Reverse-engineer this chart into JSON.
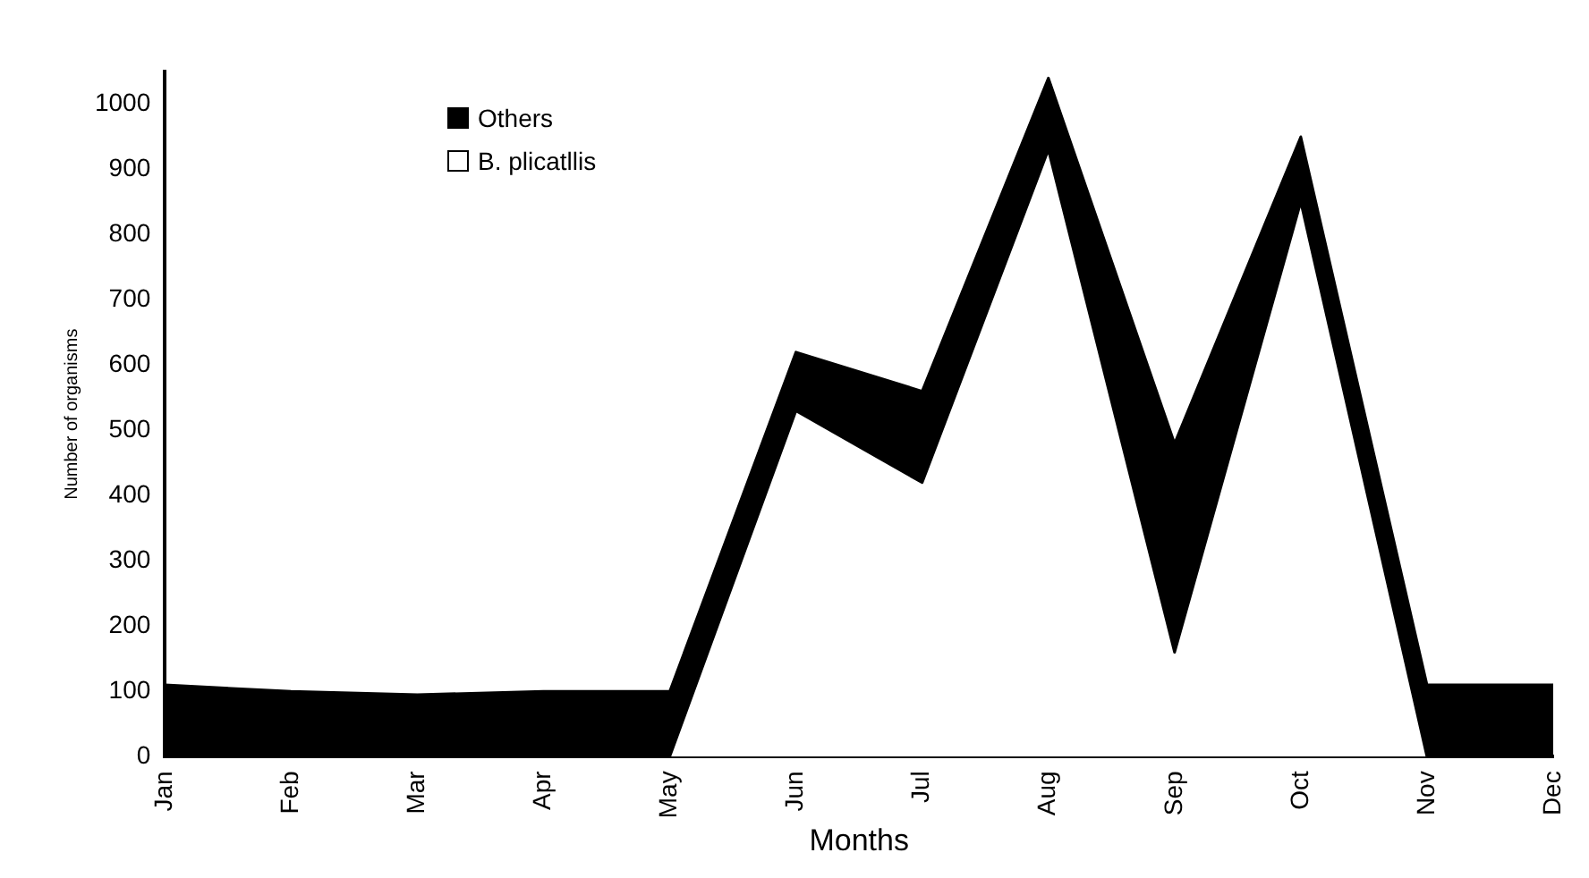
{
  "chart_data": {
    "type": "area",
    "xlabel": "Months",
    "ylabel": "Number of organisms",
    "categories": [
      "Jan",
      "Feb",
      "Mar",
      "Apr",
      "May",
      "Jun",
      "Jul",
      "Aug",
      "Sep",
      "Oct",
      "Nov",
      "Dec"
    ],
    "series": [
      {
        "name": "Others",
        "color": "#000000",
        "values": [
          110,
          100,
          95,
          100,
          100,
          620,
          560,
          1040,
          480,
          950,
          110,
          110
        ]
      },
      {
        "name": "B. plicatllis",
        "color": "#ffffff",
        "values": [
          0,
          0,
          0,
          0,
          0,
          530,
          420,
          930,
          160,
          850,
          0,
          0
        ]
      }
    ],
    "ylim": [
      0,
      1050
    ],
    "yticks": [
      0,
      100,
      200,
      300,
      400,
      500,
      600,
      700,
      800,
      900,
      1000
    ],
    "grid": false,
    "legend": "top left"
  }
}
